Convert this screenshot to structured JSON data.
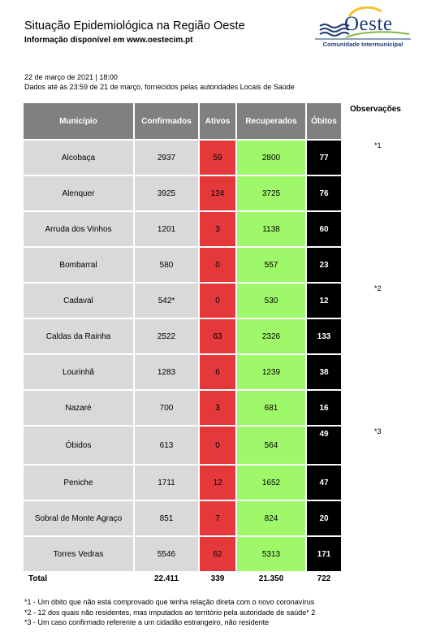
{
  "header": {
    "title": "Situação Epidemiológica na Região Oeste",
    "subtitle": "Informação disponível em www.oestecim.pt",
    "date_line": "22 de março de 2021 | 18:00",
    "source_line": "Dados até às 23:59 de 21 de março, fornecidos pelas autoridades Locais de Saúde"
  },
  "logo": {
    "word": "Oeste",
    "sub": "Comunidade Intermunicipal",
    "colors": {
      "blue": "#1f3d72",
      "yellow": "#f2c230",
      "green": "#7fb842"
    }
  },
  "table": {
    "headers": [
      "Município",
      "Confirmados",
      "Ativos",
      "Recuperados",
      "Óbitos"
    ],
    "rows": [
      {
        "municipio": "Alcobaça",
        "confirmados": "2937",
        "ativos": "59",
        "recuperados": "2800",
        "obitos": "77"
      },
      {
        "municipio": "Alenquer",
        "confirmados": "3925",
        "ativos": "124",
        "recuperados": "3725",
        "obitos": "76"
      },
      {
        "municipio": "Arruda dos Vinhos",
        "confirmados": "1201",
        "ativos": "3",
        "recuperados": "1138",
        "obitos": "60"
      },
      {
        "municipio": "Bombarral",
        "confirmados": "580",
        "ativos": "0",
        "recuperados": "557",
        "obitos": "23"
      },
      {
        "municipio": "Cadaval",
        "confirmados": "542*",
        "ativos": "0",
        "recuperados": "530",
        "obitos": "12"
      },
      {
        "municipio": "Caldas da Rainha",
        "confirmados": "2522",
        "ativos": "63",
        "recuperados": "2326",
        "obitos": "133"
      },
      {
        "municipio": "Lourinhã",
        "confirmados": "1283",
        "ativos": "6",
        "recuperados": "1239",
        "obitos": "38"
      },
      {
        "municipio": "Nazaré",
        "confirmados": "700",
        "ativos": "3",
        "recuperados": "681",
        "obitos": "16"
      },
      {
        "municipio": "Óbidos",
        "confirmados": "613",
        "ativos": "0",
        "recuperados": "564",
        "obitos": "49"
      },
      {
        "municipio": "Peniche",
        "confirmados": "1711",
        "ativos": "12",
        "recuperados": "1652",
        "obitos": "47"
      },
      {
        "municipio": "Sobral de Monte Agraço",
        "confirmados": "851",
        "ativos": "7",
        "recuperados": "824",
        "obitos": "20"
      },
      {
        "municipio": "Torres Vedras",
        "confirmados": "5546",
        "ativos": "62",
        "recuperados": "5313",
        "obitos": "171"
      }
    ],
    "total": {
      "label": "Total",
      "confirmados": "22.411",
      "ativos": "339",
      "recuperados": "21.350",
      "obitos": "722"
    },
    "colors": {
      "header": "#808080",
      "cell": "#d9d9d9",
      "ativos": "#e5383b",
      "recuperados": "#9ef86a",
      "obitos": "#000000"
    }
  },
  "observacoes": {
    "header": "Observações",
    "marks": [
      "*1",
      "*2",
      "*3"
    ]
  },
  "notes": [
    "*1 - Um óbito que não está comprovado que tenha relação direta com o novo coronavírus",
    "*2 - 12 dos quais não residentes, mas imputados ao território pela autoridade de saúde* 2",
    "*3 - Um caso confirmado referente a um cidadão estrangeiro, não residente"
  ]
}
